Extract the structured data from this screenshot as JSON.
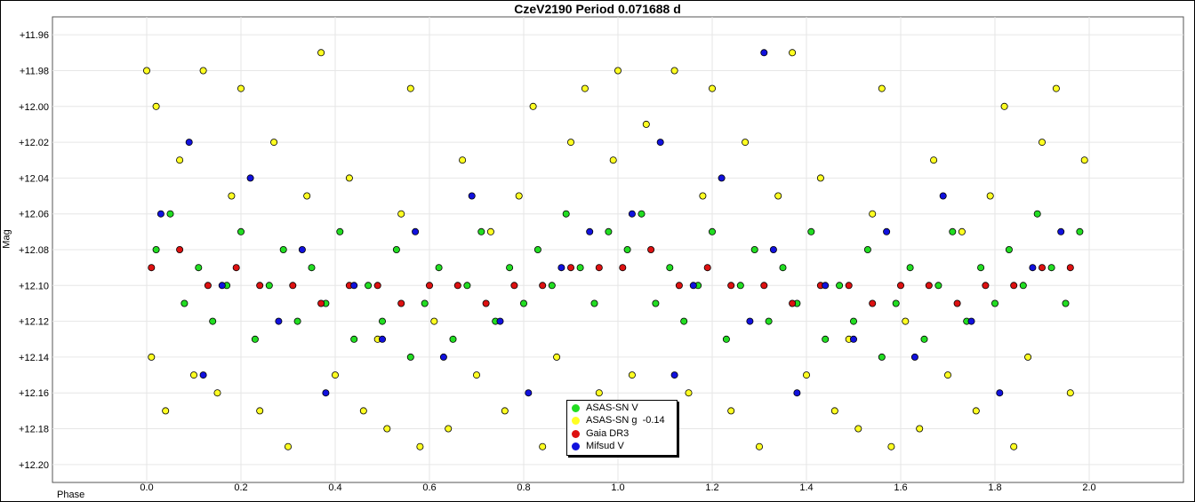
{
  "chart_data": {
    "type": "scatter",
    "title": "CzeV2190 Period 0.071688 d",
    "xlabel": "Phase",
    "ylabel": "Mag",
    "xlim": [
      -0.2,
      2.2
    ],
    "ylim": [
      12.21,
      11.95
    ],
    "y_inverted": true,
    "x_ticks": [
      "0.0",
      "0.2",
      "0.4",
      "0.6",
      "0.8",
      "1.0",
      "1.2",
      "1.4",
      "1.6",
      "1.8",
      "2.0"
    ],
    "y_ticks": [
      "+11.96",
      "+11.98",
      "+12.00",
      "+12.02",
      "+12.04",
      "+12.06",
      "+12.08",
      "+12.10",
      "+12.12",
      "+12.14",
      "+12.16",
      "+12.18",
      "+12.20"
    ],
    "grid": true,
    "legend_position": "bottom-center",
    "series": [
      {
        "name": "ASAS-SN V",
        "color": "#22dd22",
        "points": [
          [
            0.02,
            12.08
          ],
          [
            0.05,
            12.06
          ],
          [
            0.08,
            12.11
          ],
          [
            0.11,
            12.09
          ],
          [
            0.14,
            12.12
          ],
          [
            0.17,
            12.1
          ],
          [
            0.2,
            12.07
          ],
          [
            0.23,
            12.13
          ],
          [
            0.26,
            12.1
          ],
          [
            0.29,
            12.08
          ],
          [
            0.32,
            12.12
          ],
          [
            0.35,
            12.09
          ],
          [
            0.38,
            12.11
          ],
          [
            0.41,
            12.07
          ],
          [
            0.44,
            12.13
          ],
          [
            0.47,
            12.1
          ],
          [
            0.5,
            12.12
          ],
          [
            0.53,
            12.08
          ],
          [
            0.56,
            12.14
          ],
          [
            0.59,
            12.11
          ],
          [
            0.62,
            12.09
          ],
          [
            0.65,
            12.13
          ],
          [
            0.68,
            12.1
          ],
          [
            0.71,
            12.07
          ],
          [
            0.74,
            12.12
          ],
          [
            0.77,
            12.09
          ],
          [
            0.8,
            12.11
          ],
          [
            0.83,
            12.08
          ],
          [
            0.86,
            12.1
          ],
          [
            0.89,
            12.06
          ],
          [
            0.92,
            12.09
          ],
          [
            0.95,
            12.11
          ],
          [
            0.98,
            12.07
          ],
          [
            1.02,
            12.08
          ],
          [
            1.05,
            12.06
          ],
          [
            1.08,
            12.11
          ],
          [
            1.11,
            12.09
          ],
          [
            1.14,
            12.12
          ],
          [
            1.17,
            12.1
          ],
          [
            1.2,
            12.07
          ],
          [
            1.23,
            12.13
          ],
          [
            1.26,
            12.1
          ],
          [
            1.29,
            12.08
          ],
          [
            1.32,
            12.12
          ],
          [
            1.35,
            12.09
          ],
          [
            1.38,
            12.11
          ],
          [
            1.41,
            12.07
          ],
          [
            1.44,
            12.13
          ],
          [
            1.47,
            12.1
          ],
          [
            1.5,
            12.12
          ],
          [
            1.53,
            12.08
          ],
          [
            1.56,
            12.14
          ],
          [
            1.59,
            12.11
          ],
          [
            1.62,
            12.09
          ],
          [
            1.65,
            12.13
          ],
          [
            1.68,
            12.1
          ],
          [
            1.71,
            12.07
          ],
          [
            1.74,
            12.12
          ],
          [
            1.77,
            12.09
          ],
          [
            1.8,
            12.11
          ],
          [
            1.83,
            12.08
          ],
          [
            1.86,
            12.1
          ],
          [
            1.89,
            12.06
          ],
          [
            1.92,
            12.09
          ],
          [
            1.95,
            12.11
          ],
          [
            1.98,
            12.07
          ]
        ]
      },
      {
        "name": "ASAS-SN g  -0.14",
        "color": "#ffff22",
        "points": [
          [
            0.0,
            11.98
          ],
          [
            0.01,
            12.14
          ],
          [
            0.02,
            12.0
          ],
          [
            0.04,
            12.17
          ],
          [
            0.07,
            12.03
          ],
          [
            0.1,
            12.15
          ],
          [
            0.12,
            11.98
          ],
          [
            0.15,
            12.16
          ],
          [
            0.18,
            12.05
          ],
          [
            0.2,
            11.99
          ],
          [
            0.24,
            12.17
          ],
          [
            0.27,
            12.02
          ],
          [
            0.3,
            12.19
          ],
          [
            0.34,
            12.05
          ],
          [
            0.37,
            11.97
          ],
          [
            0.4,
            12.15
          ],
          [
            0.43,
            12.04
          ],
          [
            0.46,
            12.17
          ],
          [
            0.49,
            12.13
          ],
          [
            0.51,
            12.18
          ],
          [
            0.54,
            12.06
          ],
          [
            0.56,
            11.99
          ],
          [
            0.58,
            12.19
          ],
          [
            0.61,
            12.12
          ],
          [
            0.64,
            12.18
          ],
          [
            0.67,
            12.03
          ],
          [
            0.7,
            12.15
          ],
          [
            0.73,
            12.07
          ],
          [
            0.76,
            12.17
          ],
          [
            0.79,
            12.05
          ],
          [
            0.82,
            12.0
          ],
          [
            0.84,
            12.19
          ],
          [
            0.87,
            12.14
          ],
          [
            0.9,
            12.02
          ],
          [
            0.93,
            11.99
          ],
          [
            0.96,
            12.16
          ],
          [
            0.99,
            12.03
          ],
          [
            1.0,
            11.98
          ],
          [
            1.03,
            12.15
          ],
          [
            1.06,
            12.01
          ],
          [
            1.09,
            12.17
          ],
          [
            1.12,
            11.98
          ],
          [
            1.15,
            12.16
          ],
          [
            1.18,
            12.05
          ],
          [
            1.2,
            11.99
          ],
          [
            1.24,
            12.17
          ],
          [
            1.27,
            12.02
          ],
          [
            1.3,
            12.19
          ],
          [
            1.34,
            12.05
          ],
          [
            1.37,
            11.97
          ],
          [
            1.4,
            12.15
          ],
          [
            1.43,
            12.04
          ],
          [
            1.46,
            12.17
          ],
          [
            1.49,
            12.13
          ],
          [
            1.51,
            12.18
          ],
          [
            1.54,
            12.06
          ],
          [
            1.56,
            11.99
          ],
          [
            1.58,
            12.19
          ],
          [
            1.61,
            12.12
          ],
          [
            1.64,
            12.18
          ],
          [
            1.67,
            12.03
          ],
          [
            1.7,
            12.15
          ],
          [
            1.73,
            12.07
          ],
          [
            1.76,
            12.17
          ],
          [
            1.79,
            12.05
          ],
          [
            1.82,
            12.0
          ],
          [
            1.84,
            12.19
          ],
          [
            1.87,
            12.14
          ],
          [
            1.9,
            12.02
          ],
          [
            1.93,
            11.99
          ],
          [
            1.96,
            12.16
          ],
          [
            1.99,
            12.03
          ]
        ]
      },
      {
        "name": "Gaia DR3",
        "color": "#dd1111",
        "points": [
          [
            0.01,
            12.09
          ],
          [
            0.07,
            12.08
          ],
          [
            0.13,
            12.1
          ],
          [
            0.19,
            12.09
          ],
          [
            0.24,
            12.1
          ],
          [
            0.31,
            12.1
          ],
          [
            0.37,
            12.11
          ],
          [
            0.43,
            12.1
          ],
          [
            0.49,
            12.1
          ],
          [
            0.54,
            12.11
          ],
          [
            0.6,
            12.1
          ],
          [
            0.66,
            12.1
          ],
          [
            0.72,
            12.11
          ],
          [
            0.78,
            12.1
          ],
          [
            0.84,
            12.1
          ],
          [
            0.9,
            12.09
          ],
          [
            0.96,
            12.09
          ],
          [
            1.01,
            12.09
          ],
          [
            1.07,
            12.08
          ],
          [
            1.13,
            12.1
          ],
          [
            1.19,
            12.09
          ],
          [
            1.24,
            12.1
          ],
          [
            1.31,
            12.1
          ],
          [
            1.37,
            12.11
          ],
          [
            1.43,
            12.1
          ],
          [
            1.49,
            12.1
          ],
          [
            1.54,
            12.11
          ],
          [
            1.6,
            12.1
          ],
          [
            1.66,
            12.1
          ],
          [
            1.72,
            12.11
          ],
          [
            1.78,
            12.1
          ],
          [
            1.84,
            12.1
          ],
          [
            1.9,
            12.09
          ],
          [
            1.96,
            12.09
          ]
        ]
      },
      {
        "name": "Mifsud V",
        "color": "#1111dd",
        "points": [
          [
            0.03,
            12.06
          ],
          [
            0.09,
            12.02
          ],
          [
            0.12,
            12.15
          ],
          [
            0.16,
            12.1
          ],
          [
            0.22,
            12.04
          ],
          [
            0.28,
            12.12
          ],
          [
            0.33,
            12.08
          ],
          [
            0.38,
            12.16
          ],
          [
            0.44,
            12.1
          ],
          [
            0.5,
            12.13
          ],
          [
            0.57,
            12.07
          ],
          [
            0.63,
            12.14
          ],
          [
            0.69,
            12.05
          ],
          [
            0.75,
            12.12
          ],
          [
            0.81,
            12.16
          ],
          [
            0.88,
            12.09
          ],
          [
            0.94,
            12.07
          ],
          [
            1.03,
            12.06
          ],
          [
            1.09,
            12.02
          ],
          [
            1.12,
            12.15
          ],
          [
            1.16,
            12.1
          ],
          [
            1.22,
            12.04
          ],
          [
            1.28,
            12.12
          ],
          [
            1.31,
            11.97
          ],
          [
            1.33,
            12.08
          ],
          [
            1.38,
            12.16
          ],
          [
            1.44,
            12.1
          ],
          [
            1.5,
            12.13
          ],
          [
            1.57,
            12.07
          ],
          [
            1.63,
            12.14
          ],
          [
            1.69,
            12.05
          ],
          [
            1.75,
            12.12
          ],
          [
            1.81,
            12.16
          ],
          [
            1.88,
            12.09
          ],
          [
            1.94,
            12.07
          ]
        ]
      }
    ]
  }
}
